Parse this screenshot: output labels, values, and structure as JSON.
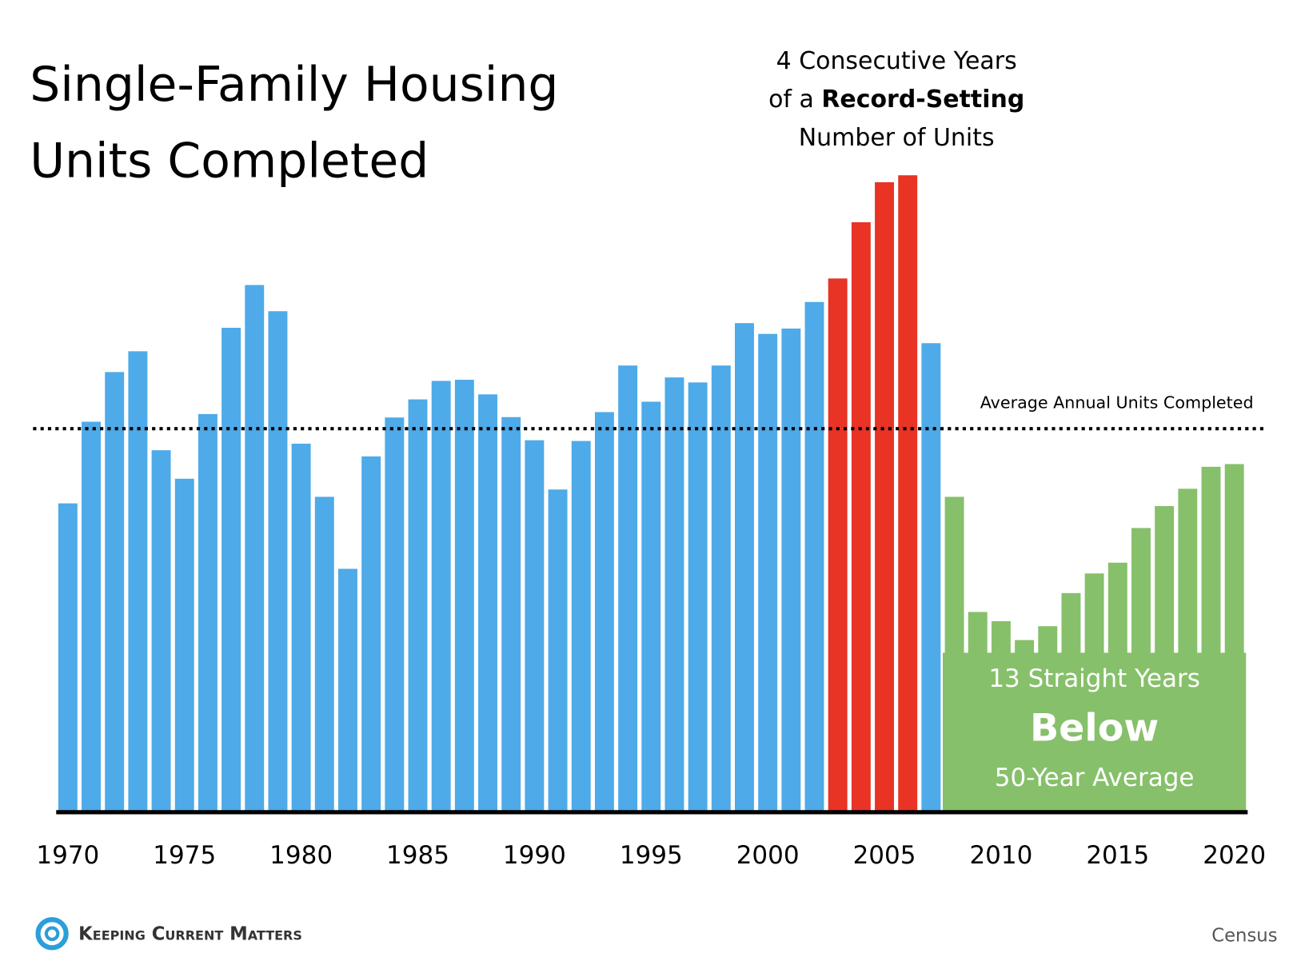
{
  "chart_data": {
    "type": "bar",
    "title": [
      "Single-Family Housing",
      "Units Completed"
    ],
    "annotation_top": {
      "line1": "4 Consecutive Years",
      "line2_prefix": "of a",
      "line2_bold": "Record-Setting",
      "line3": "Number of Units"
    },
    "annotation_box": {
      "line1": "13 Straight Years",
      "line2": "Below",
      "line3": "50-Year Average",
      "color": "#86c06a"
    },
    "average": {
      "label": "Average Annual Units Completed",
      "value": 996
    },
    "x": [
      1970,
      1971,
      1972,
      1973,
      1974,
      1975,
      1976,
      1977,
      1978,
      1979,
      1980,
      1981,
      1982,
      1983,
      1984,
      1985,
      1986,
      1987,
      1988,
      1989,
      1990,
      1991,
      1992,
      1993,
      1994,
      1995,
      1996,
      1997,
      1998,
      1999,
      2000,
      2001,
      2002,
      2003,
      2004,
      2005,
      2006,
      2007,
      2008,
      2009,
      2010,
      2011,
      2012,
      2013,
      2014,
      2015,
      2016,
      2017,
      2018,
      2019,
      2020
    ],
    "values": [
      802,
      1014,
      1143,
      1197,
      940,
      866,
      1034,
      1258,
      1369,
      1301,
      957,
      819,
      632,
      924,
      1025,
      1072,
      1120,
      1123,
      1085,
      1026,
      966,
      838,
      964,
      1039,
      1160,
      1066,
      1129,
      1116,
      1160,
      1270,
      1242,
      1256,
      1325,
      1386,
      1532,
      1636,
      1654,
      1218,
      819,
      520,
      496,
      447,
      483,
      569,
      620,
      648,
      738,
      795,
      840,
      897,
      904
    ],
    "colors": [
      "#4eaae8",
      "#4eaae8",
      "#4eaae8",
      "#4eaae8",
      "#4eaae8",
      "#4eaae8",
      "#4eaae8",
      "#4eaae8",
      "#4eaae8",
      "#4eaae8",
      "#4eaae8",
      "#4eaae8",
      "#4eaae8",
      "#4eaae8",
      "#4eaae8",
      "#4eaae8",
      "#4eaae8",
      "#4eaae8",
      "#4eaae8",
      "#4eaae8",
      "#4eaae8",
      "#4eaae8",
      "#4eaae8",
      "#4eaae8",
      "#4eaae8",
      "#4eaae8",
      "#4eaae8",
      "#4eaae8",
      "#4eaae8",
      "#4eaae8",
      "#4eaae8",
      "#4eaae8",
      "#4eaae8",
      "#e83325",
      "#e83325",
      "#e83325",
      "#e83325",
      "#4eaae8",
      "#86c06a",
      "#86c06a",
      "#86c06a",
      "#86c06a",
      "#86c06a",
      "#86c06a",
      "#86c06a",
      "#86c06a",
      "#86c06a",
      "#86c06a",
      "#86c06a",
      "#86c06a",
      "#86c06a"
    ],
    "xlim": [
      1969.5,
      2020.5
    ],
    "xticks": [
      1970,
      1975,
      1980,
      1985,
      1990,
      1995,
      2000,
      2005,
      2010,
      2015,
      2020
    ],
    "ylim": [
      0,
      1800
    ]
  },
  "footer": {
    "logo": "Keeping Current Matters",
    "source": "Census"
  }
}
